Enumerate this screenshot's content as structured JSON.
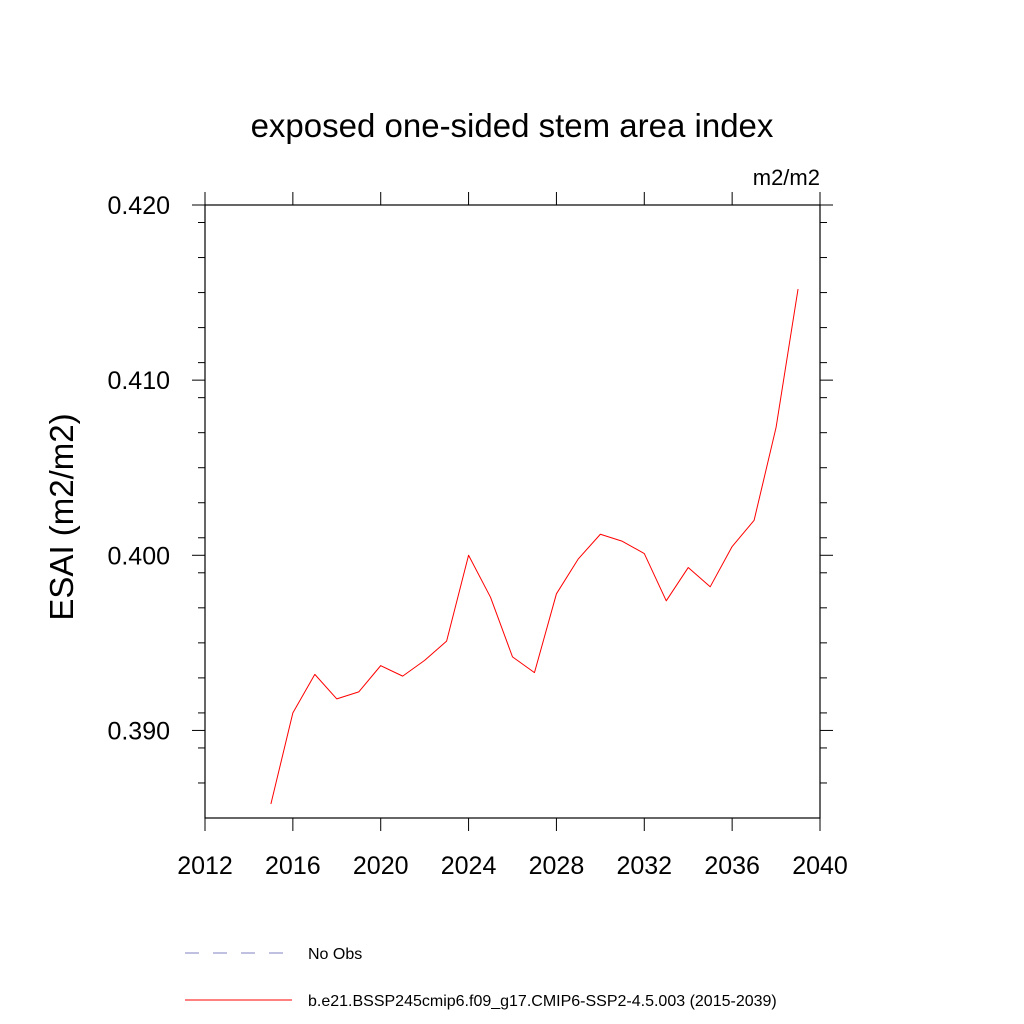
{
  "chart_data": {
    "type": "line",
    "title": "exposed one-sided stem area index",
    "units": "m2/m2",
    "xlabel": "",
    "ylabel": "ESAI  (m2/m2)",
    "xlim": [
      2012,
      2040
    ],
    "ylim": [
      0.385,
      0.42
    ],
    "x_ticks": [
      2012,
      2016,
      2020,
      2024,
      2028,
      2032,
      2036,
      2040
    ],
    "x_tick_labels": [
      "2012",
      "2016",
      "2020",
      "2024",
      "2028",
      "2032",
      "2036",
      "2040"
    ],
    "y_ticks": [
      0.39,
      0.4,
      0.41,
      0.42
    ],
    "y_tick_labels": [
      "0.390",
      "0.400",
      "0.410",
      "0.420"
    ],
    "grid": false,
    "series": [
      {
        "name": "b.e21.BSSP245cmip6.f09_g17.CMIP6-SSP2-4.5.003 (2015-2039)",
        "color": "#ff0000",
        "style": "solid",
        "x": [
          2015,
          2016,
          2017,
          2018,
          2019,
          2020,
          2021,
          2022,
          2023,
          2024,
          2025,
          2026,
          2027,
          2028,
          2029,
          2030,
          2031,
          2032,
          2033,
          2034,
          2035,
          2036,
          2037,
          2038,
          2039
        ],
        "y": [
          0.3858,
          0.391,
          0.3932,
          0.3918,
          0.3922,
          0.3937,
          0.3931,
          0.394,
          0.3951,
          0.4,
          0.3976,
          0.3942,
          0.3933,
          0.3978,
          0.3998,
          0.4012,
          0.4008,
          0.4001,
          0.3974,
          0.3993,
          0.3982,
          0.4005,
          0.402,
          0.4073,
          0.4152
        ]
      }
    ],
    "legend": {
      "placement": "bottom",
      "entries": [
        {
          "label": "No Obs",
          "color": "#8080c0",
          "style": "dashed"
        },
        {
          "label": "b.e21.BSSP245cmip6.f09_g17.CMIP6-SSP2-4.5.003 (2015-2039)",
          "color": "#ff0000",
          "style": "solid"
        }
      ]
    }
  }
}
